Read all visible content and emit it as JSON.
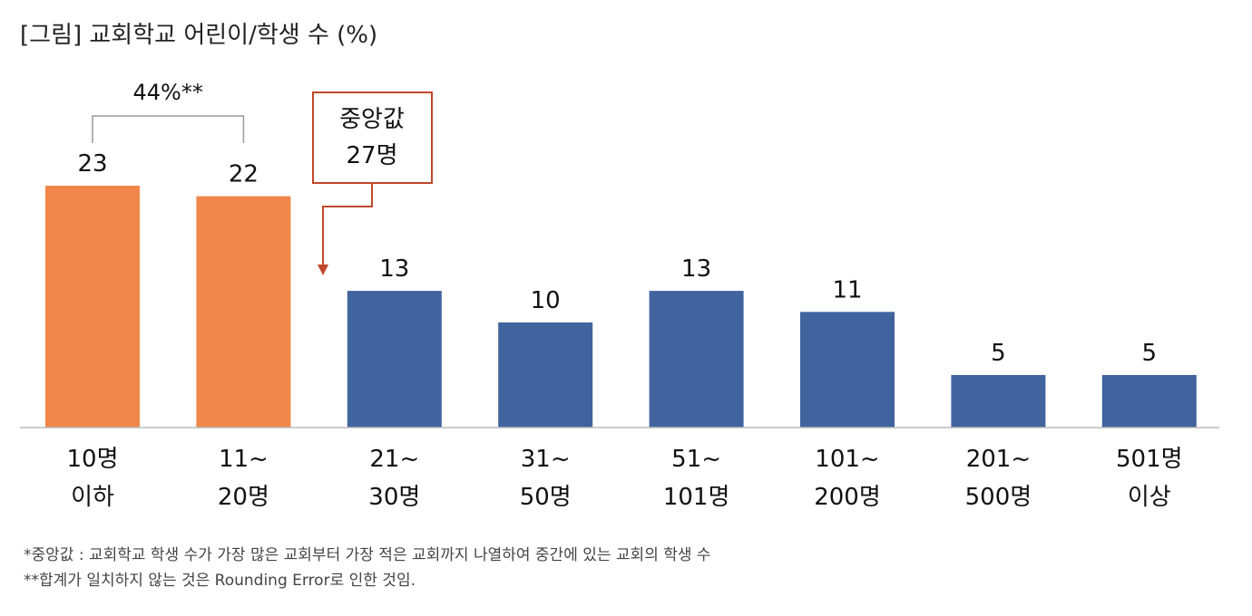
{
  "chart_data": {
    "type": "bar",
    "title": "[그림] 교회학교 어린이/학생 수 (%)",
    "categories": [
      [
        "10명",
        "이하"
      ],
      [
        "11~",
        "20명"
      ],
      [
        "21~",
        "30명"
      ],
      [
        "31~",
        "50명"
      ],
      [
        "51~",
        "101명"
      ],
      [
        "101~",
        "200명"
      ],
      [
        "201~",
        "500명"
      ],
      [
        "501명",
        "이상"
      ]
    ],
    "values": [
      23,
      22,
      13,
      10,
      13,
      11,
      5,
      5
    ],
    "highlight_indices": [
      0,
      1
    ],
    "colors": {
      "highlight": "#F0874A",
      "normal": "#41649F",
      "callout": "#C0472C",
      "bracket": "#999999",
      "axis": "#BBBBBB"
    },
    "ylim": [
      0,
      23
    ],
    "bracket_annotation": {
      "text": "44%**",
      "from_index": 0,
      "to_index": 1
    },
    "callout_annotation": {
      "lines": [
        "중앙값",
        "27명"
      ]
    }
  },
  "notes": [
    "*중앙값 : 교회학교 학생 수가 가장 많은 교회부터 가장 적은 교회까지 나열하여 중간에 있는 교회의 학생 수",
    "**합계가 일치하지 않는 것은 Rounding Error로 인한 것임."
  ]
}
